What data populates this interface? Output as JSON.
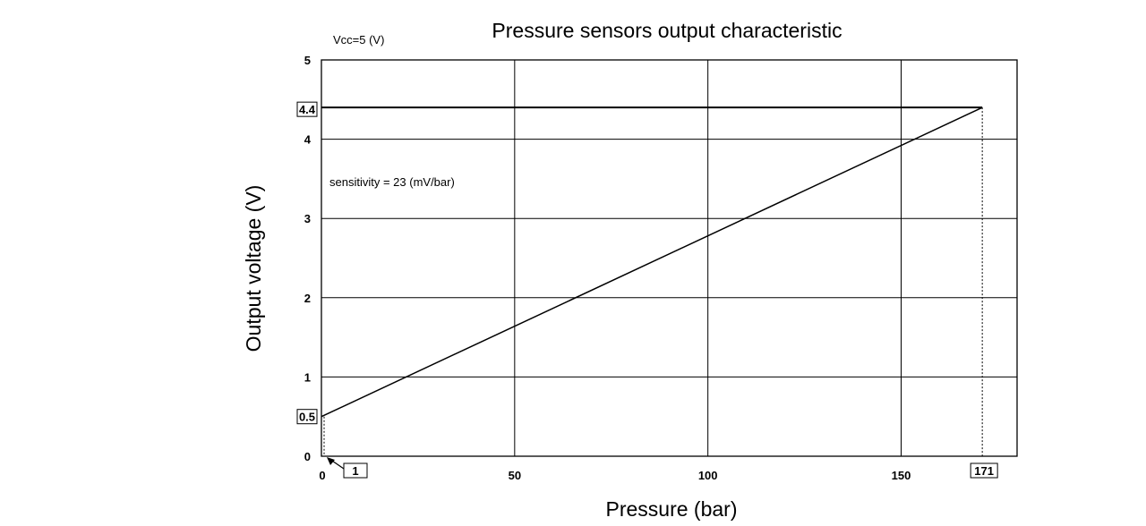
{
  "chart_data": {
    "type": "line",
    "title": "Pressure sensors output characteristic",
    "xlabel": "Pressure (bar)",
    "ylabel": "Output voltage (V)",
    "xlim": [
      0,
      180
    ],
    "ylim": [
      0,
      5
    ],
    "x_ticks": [
      "0",
      "50",
      "100",
      "150"
    ],
    "y_ticks": [
      "0",
      "1",
      "2",
      "3",
      "4",
      "5"
    ],
    "grid": true,
    "series": [
      {
        "x": [
          0,
          171
        ],
        "y": [
          0.5,
          4.4
        ]
      }
    ],
    "annotations": {
      "supply": "Vcc=5 (V)",
      "sensitivity": "sensitivity = 23 (mV/bar)",
      "x_min_box": "1",
      "x_max_box": "171",
      "y_min_box": "0.5",
      "y_max_box": "4.4"
    }
  }
}
